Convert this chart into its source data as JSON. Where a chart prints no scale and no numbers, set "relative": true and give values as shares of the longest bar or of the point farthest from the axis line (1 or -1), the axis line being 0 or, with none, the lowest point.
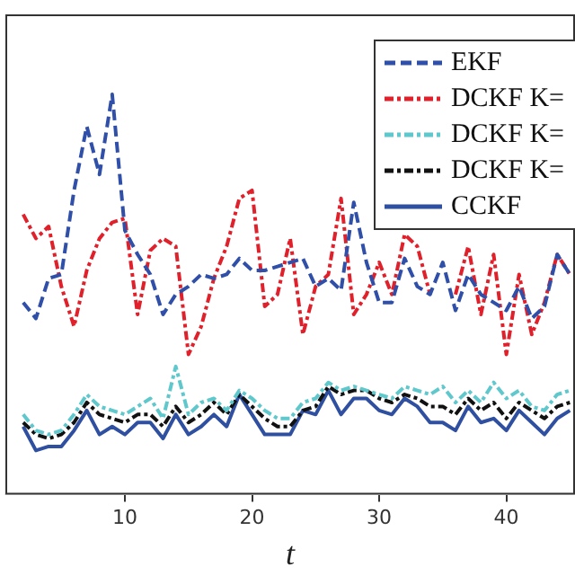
{
  "chart_data": {
    "type": "line",
    "xlabel": "t",
    "relative": true,
    "legend": "top right",
    "grid": false,
    "marker": "none",
    "tick_labels": "x",
    "x": [
      2,
      3,
      4,
      5,
      6,
      7,
      8,
      9,
      10,
      11,
      12,
      13,
      14,
      15,
      16,
      17,
      18,
      19,
      20,
      21,
      22,
      23,
      24,
      25,
      26,
      27,
      28,
      29,
      30,
      31,
      32,
      33,
      34,
      35,
      36,
      37,
      38,
      39,
      40,
      41,
      42,
      43,
      44,
      45
    ],
    "xlim": [
      0.6,
      45.4
    ],
    "xticks": [
      10,
      20,
      30,
      40
    ],
    "series": [
      {
        "name": "EKF",
        "color": "#2f4fa8",
        "line_style": "dashed",
        "values": [
          0.48,
          0.44,
          0.54,
          0.55,
          0.76,
          0.92,
          0.8,
          1.0,
          0.66,
          0.6,
          0.55,
          0.45,
          0.5,
          0.52,
          0.55,
          0.54,
          0.55,
          0.59,
          0.56,
          0.56,
          0.57,
          0.58,
          0.59,
          0.52,
          0.54,
          0.51,
          0.73,
          0.58,
          0.48,
          0.48,
          0.59,
          0.52,
          0.5,
          0.58,
          0.46,
          0.55,
          0.5,
          0.48,
          0.46,
          0.52,
          0.44,
          0.47,
          0.6,
          0.55
        ]
      },
      {
        "name": "DCKF K=",
        "color": "#e0202a",
        "line_style": "dashdot",
        "values": [
          0.7,
          0.64,
          0.67,
          0.52,
          0.42,
          0.56,
          0.64,
          0.68,
          0.69,
          0.45,
          0.61,
          0.64,
          0.62,
          0.35,
          0.42,
          0.54,
          0.62,
          0.74,
          0.76,
          0.47,
          0.5,
          0.64,
          0.4,
          0.52,
          0.55,
          0.74,
          0.45,
          0.5,
          0.58,
          0.5,
          0.65,
          0.62,
          0.5,
          null,
          0.5,
          0.62,
          0.45,
          0.6,
          0.35,
          0.55,
          0.4,
          0.48,
          0.6,
          0.55
        ]
      },
      {
        "name": "DCKF K=",
        "color": "#5fc8cc",
        "line_style": "dashdot",
        "values": [
          0.2,
          0.16,
          0.15,
          0.16,
          0.2,
          0.25,
          0.22,
          0.21,
          0.2,
          0.22,
          0.24,
          0.19,
          0.32,
          0.2,
          0.23,
          0.24,
          0.21,
          0.26,
          0.24,
          0.21,
          0.19,
          0.19,
          0.23,
          0.24,
          0.28,
          0.26,
          0.27,
          0.26,
          0.25,
          0.24,
          0.27,
          0.26,
          0.25,
          0.27,
          0.23,
          0.26,
          0.23,
          0.28,
          0.24,
          0.26,
          0.22,
          0.21,
          0.25,
          0.26
        ]
      },
      {
        "name": "DCKF K=",
        "color": "#111111",
        "line_style": "dashdot",
        "values": [
          0.18,
          0.15,
          0.14,
          0.15,
          0.18,
          0.23,
          0.2,
          0.19,
          0.18,
          0.2,
          0.2,
          0.17,
          0.22,
          0.18,
          0.2,
          0.23,
          0.2,
          0.25,
          0.22,
          0.19,
          0.17,
          0.17,
          0.21,
          0.22,
          0.27,
          0.25,
          0.26,
          0.26,
          0.24,
          0.23,
          0.25,
          0.24,
          0.22,
          0.22,
          0.2,
          0.24,
          0.21,
          0.23,
          0.19,
          0.23,
          0.21,
          0.19,
          0.22,
          0.23
        ]
      },
      {
        "name": "CCKF",
        "color": "#2f4fa0",
        "line_style": "solid",
        "values": [
          0.17,
          0.11,
          0.12,
          0.12,
          0.16,
          0.21,
          0.15,
          0.17,
          0.15,
          0.18,
          0.18,
          0.14,
          0.2,
          0.15,
          0.17,
          0.2,
          0.17,
          0.25,
          0.2,
          0.15,
          0.15,
          0.15,
          0.21,
          0.2,
          0.26,
          0.2,
          0.24,
          0.24,
          0.21,
          0.2,
          0.24,
          0.22,
          0.18,
          0.18,
          0.16,
          0.22,
          0.18,
          0.19,
          0.16,
          0.21,
          0.18,
          0.15,
          0.19,
          0.21
        ]
      }
    ]
  }
}
